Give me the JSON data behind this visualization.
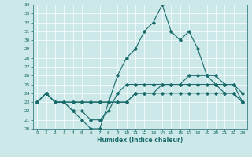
{
  "title": "",
  "xlabel": "Humidex (Indice chaleur)",
  "xlim": [
    -0.5,
    23.5
  ],
  "ylim": [
    20,
    34
  ],
  "xticks": [
    0,
    1,
    2,
    3,
    4,
    5,
    6,
    7,
    8,
    9,
    10,
    11,
    12,
    13,
    14,
    15,
    16,
    17,
    18,
    19,
    20,
    21,
    22,
    23
  ],
  "yticks": [
    20,
    21,
    22,
    23,
    24,
    25,
    26,
    27,
    28,
    29,
    30,
    31,
    32,
    33,
    34
  ],
  "bg_color": "#cce8e8",
  "line_color": "#1a6b6b",
  "grid_color": "#ffffff",
  "curve1_x": [
    0,
    1,
    2,
    3,
    4,
    5,
    6,
    7,
    8,
    9,
    10,
    11,
    12,
    13,
    14,
    15,
    16,
    17,
    18,
    19,
    20,
    21,
    22,
    23
  ],
  "curve1_y": [
    23,
    24,
    23,
    23,
    22,
    21,
    20,
    20,
    23,
    26,
    28,
    29,
    31,
    32,
    34,
    31,
    30,
    31,
    29,
    26,
    25,
    25,
    25,
    23
  ],
  "curve2_x": [
    0,
    1,
    2,
    3,
    4,
    5,
    6,
    7,
    8,
    9,
    10,
    11,
    12,
    13,
    14,
    15,
    16,
    17,
    18,
    19,
    20,
    21,
    22,
    23
  ],
  "curve2_y": [
    23,
    24,
    23,
    23,
    22,
    22,
    21,
    21,
    22,
    24,
    25,
    25,
    25,
    25,
    25,
    25,
    25,
    25,
    25,
    25,
    25,
    24,
    24,
    23
  ],
  "curve3_x": [
    0,
    1,
    2,
    3,
    4,
    5,
    6,
    7,
    8,
    9,
    10,
    11,
    12,
    13,
    14,
    15,
    16,
    17,
    18,
    19,
    20,
    21,
    22,
    23
  ],
  "curve3_y": [
    23,
    24,
    23,
    23,
    23,
    23,
    23,
    23,
    23,
    23,
    23,
    24,
    24,
    24,
    24,
    24,
    24,
    24,
    24,
    24,
    24,
    24,
    24,
    23
  ],
  "curve4_x": [
    0,
    1,
    2,
    3,
    4,
    5,
    6,
    7,
    8,
    9,
    10,
    11,
    12,
    13,
    14,
    15,
    16,
    17,
    18,
    19,
    20,
    21,
    22,
    23
  ],
  "curve4_y": [
    23,
    24,
    23,
    23,
    23,
    23,
    23,
    23,
    23,
    23,
    23,
    24,
    24,
    24,
    25,
    25,
    25,
    26,
    26,
    26,
    26,
    25,
    25,
    24
  ]
}
